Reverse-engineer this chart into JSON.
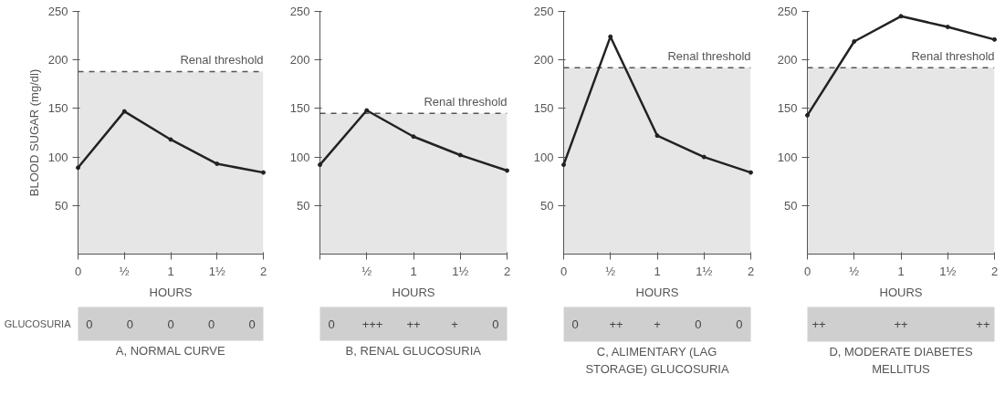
{
  "chart_data": [
    {
      "type": "line",
      "title": "A, NORMAL CURVE",
      "xlabel": "HOURS",
      "ylabel": "BLOOD SUGAR (mg/dl)",
      "x": [
        0,
        0.5,
        1,
        1.5,
        2
      ],
      "color": "#222222",
      "marker": "circle",
      "line_style": "solid",
      "values": [
        89,
        147,
        118,
        93,
        84
      ],
      "xlim": [
        0,
        2
      ],
      "xticks": [
        0,
        {
          "value": 0.5,
          "label": "½"
        },
        1,
        {
          "value": 1.5,
          "label": "1½"
        },
        2
      ],
      "ylim": [
        0,
        250
      ],
      "yticks": [
        50,
        100,
        150,
        200,
        250
      ],
      "ref_lines": [
        {
          "axis": "y",
          "value": 188,
          "label": "Renal threshold",
          "line_style": "dashed",
          "color": "#555555"
        }
      ],
      "bands": [
        {
          "axis": "y",
          "from": 0,
          "to": 188,
          "color": "#e6e6e6"
        }
      ],
      "annotations": [
        "GLUCOSURIA",
        "0",
        "0",
        "0",
        "0",
        "0"
      ]
    },
    {
      "type": "line",
      "title": "B, RENAL GLUCOSURIA",
      "xlabel": "HOURS",
      "x": [
        0,
        0.5,
        1,
        1.5,
        2
      ],
      "color": "#222222",
      "marker": "circle",
      "line_style": "solid",
      "values": [
        92,
        148,
        121,
        102,
        86
      ],
      "xlim": [
        0,
        2
      ],
      "xticks": [
        {
          "value": 0,
          "label": null
        },
        {
          "value": 0.5,
          "label": "½"
        },
        1,
        {
          "value": 1.5,
          "label": "1½"
        },
        2
      ],
      "ylim": [
        0,
        250
      ],
      "yticks": [
        50,
        100,
        150,
        200,
        250
      ],
      "ref_lines": [
        {
          "axis": "y",
          "value": 145,
          "label": "Renal threshold",
          "line_style": "dashed",
          "color": "#555555"
        }
      ],
      "bands": [
        {
          "axis": "y",
          "from": 0,
          "to": 145,
          "color": "#e6e6e6"
        }
      ],
      "annotations": [
        "0",
        "+++",
        "++",
        "+",
        "0"
      ]
    },
    {
      "type": "line",
      "title": "C, ALIMENTARY (LAG STORAGE) GLUCOSURIA",
      "xlabel": "HOURS",
      "x": [
        0,
        0.5,
        1,
        1.5,
        2
      ],
      "color": "#222222",
      "marker": "circle",
      "line_style": "solid",
      "values": [
        92,
        224,
        122,
        100,
        84
      ],
      "xlim": [
        0,
        2
      ],
      "xticks": [
        0,
        {
          "value": 0.5,
          "label": "½"
        },
        1,
        {
          "value": 1.5,
          "label": "1½"
        },
        2
      ],
      "ylim": [
        0,
        250
      ],
      "yticks": [
        50,
        100,
        150,
        200,
        250
      ],
      "ref_lines": [
        {
          "axis": "y",
          "value": 192,
          "label": "Renal threshold",
          "line_style": "dashed",
          "color": "#555555"
        }
      ],
      "bands": [
        {
          "axis": "y",
          "from": 0,
          "to": 192,
          "color": "#e6e6e6"
        }
      ],
      "annotations": [
        "0",
        "++",
        "+",
        "0",
        "0"
      ]
    },
    {
      "type": "line",
      "title": "D, MODERATE DIABETES MELLITUS",
      "xlabel": "HOURS",
      "x": [
        0,
        0.5,
        1,
        1.5,
        2
      ],
      "color": "#222222",
      "marker": "circle",
      "line_style": "solid",
      "values": [
        143,
        219,
        245,
        234,
        221
      ],
      "xlim": [
        0,
        2
      ],
      "xticks": [
        0,
        {
          "value": 0.5,
          "label": "½"
        },
        1,
        {
          "value": 1.5,
          "label": "1½"
        },
        2
      ],
      "ylim": [
        0,
        250
      ],
      "yticks": [
        50,
        100,
        150,
        200,
        250
      ],
      "ref_lines": [
        {
          "axis": "y",
          "value": 192,
          "label": "Renal threshold",
          "line_style": "dashed",
          "color": "#555555"
        }
      ],
      "bands": [
        {
          "axis": "y",
          "from": 0,
          "to": 192,
          "color": "#e6e6e6"
        }
      ],
      "annotations": [
        "++",
        "++",
        "++"
      ]
    }
  ]
}
